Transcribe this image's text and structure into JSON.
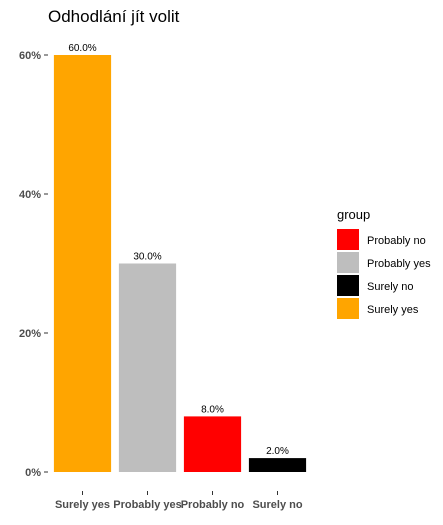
{
  "chart_data": {
    "type": "bar",
    "title": "Odhodlání jít volit",
    "xlabel": "",
    "ylabel": "",
    "categories": [
      "Surely yes",
      "Probably yes",
      "Probably no",
      "Surely no"
    ],
    "values": [
      60.0,
      30.0,
      8.0,
      2.0
    ],
    "data_labels": [
      "60.0%",
      "30.0%",
      "8.0%",
      "2.0%"
    ],
    "colors": [
      "#FFA500",
      "#BEBEBE",
      "#FF0000",
      "#000000"
    ],
    "ylim": [
      0,
      62
    ],
    "yticks": [
      0,
      20,
      40,
      60
    ],
    "ytick_labels": [
      "0%",
      "20%",
      "40%",
      "60%"
    ],
    "grid": false,
    "legend": {
      "title": "group",
      "placement": "right",
      "items": [
        {
          "label": "Probably no",
          "color": "#FF0000"
        },
        {
          "label": "Probably yes",
          "color": "#BEBEBE"
        },
        {
          "label": "Surely no",
          "color": "#000000"
        },
        {
          "label": "Surely yes",
          "color": "#FFA500"
        }
      ]
    }
  }
}
